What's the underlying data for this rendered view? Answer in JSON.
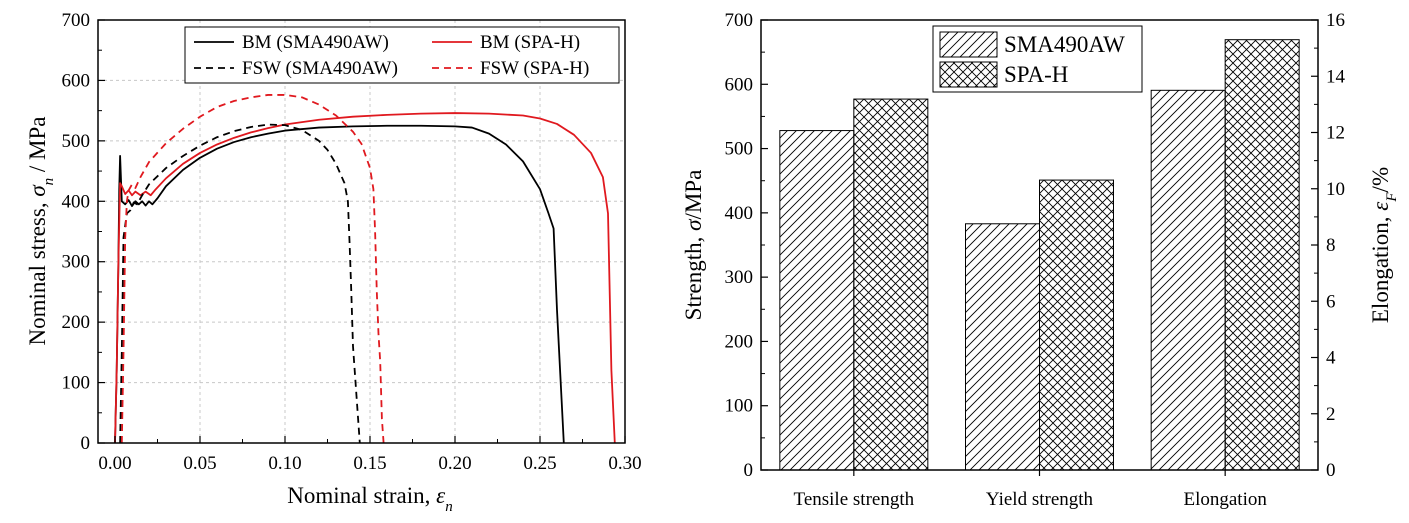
{
  "chart_data": [
    {
      "type": "line",
      "xlabel": "Nominal strain, ",
      "xlabel_symbol": "ε",
      "xlabel_sub": "n",
      "ylabel": "Nominal stress, ",
      "ylabel_symbol": "σ",
      "ylabel_sub": "n",
      "ylabel_unit": " / MPa",
      "xlim": [
        -0.01,
        0.3
      ],
      "ylim": [
        0,
        700
      ],
      "xticks": [
        "0.00",
        "0.05",
        "0.10",
        "0.15",
        "0.20",
        "0.25",
        "0.30"
      ],
      "xtick_values": [
        0,
        0.05,
        0.1,
        0.15,
        0.2,
        0.25,
        0.3
      ],
      "yticks": [
        "0",
        "100",
        "200",
        "300",
        "400",
        "500",
        "600",
        "700"
      ],
      "ytick_values": [
        0,
        100,
        200,
        300,
        400,
        500,
        600,
        700
      ],
      "grid": true,
      "legend_position": "top-right",
      "series": [
        {
          "name": "BM (SMA490AW)",
          "color": "#000000",
          "dash": "solid",
          "points": [
            [
              0,
              0
            ],
            [
              0.001,
              120
            ],
            [
              0.002,
              300
            ],
            [
              0.0025,
              420
            ],
            [
              0.003,
              475
            ],
            [
              0.004,
              400
            ],
            [
              0.006,
              395
            ],
            [
              0.008,
              402
            ],
            [
              0.01,
              392
            ],
            [
              0.012,
              400
            ],
            [
              0.014,
              395
            ],
            [
              0.016,
              400
            ],
            [
              0.018,
              393
            ],
            [
              0.02,
              400
            ],
            [
              0.022,
              395
            ],
            [
              0.025,
              405
            ],
            [
              0.03,
              425
            ],
            [
              0.04,
              452
            ],
            [
              0.05,
              472
            ],
            [
              0.06,
              487
            ],
            [
              0.07,
              498
            ],
            [
              0.08,
              506
            ],
            [
              0.09,
              512
            ],
            [
              0.1,
              517
            ],
            [
              0.12,
              522
            ],
            [
              0.14,
              524
            ],
            [
              0.16,
              525
            ],
            [
              0.18,
              525
            ],
            [
              0.2,
              524
            ],
            [
              0.21,
              522
            ],
            [
              0.22,
              512
            ],
            [
              0.23,
              494
            ],
            [
              0.24,
              466
            ],
            [
              0.25,
              420
            ],
            [
              0.255,
              380
            ],
            [
              0.258,
              355
            ],
            [
              0.26,
              220
            ],
            [
              0.262,
              110
            ],
            [
              0.264,
              0
            ]
          ]
        },
        {
          "name": "BM (SPA-H)",
          "color": "#e0191f",
          "dash": "solid",
          "points": [
            [
              0,
              0
            ],
            [
              0.001,
              120
            ],
            [
              0.002,
              300
            ],
            [
              0.003,
              430
            ],
            [
              0.004,
              425
            ],
            [
              0.006,
              412
            ],
            [
              0.008,
              418
            ],
            [
              0.01,
              410
            ],
            [
              0.012,
              416
            ],
            [
              0.015,
              410
            ],
            [
              0.018,
              416
            ],
            [
              0.021,
              410
            ],
            [
              0.024,
              420
            ],
            [
              0.03,
              438
            ],
            [
              0.04,
              462
            ],
            [
              0.05,
              480
            ],
            [
              0.06,
              494
            ],
            [
              0.07,
              505
            ],
            [
              0.08,
              514
            ],
            [
              0.09,
              521
            ],
            [
              0.1,
              527
            ],
            [
              0.12,
              535
            ],
            [
              0.14,
              540
            ],
            [
              0.16,
              543
            ],
            [
              0.18,
              545
            ],
            [
              0.2,
              546
            ],
            [
              0.22,
              545
            ],
            [
              0.24,
              542
            ],
            [
              0.25,
              537
            ],
            [
              0.26,
              528
            ],
            [
              0.27,
              510
            ],
            [
              0.28,
              480
            ],
            [
              0.287,
              440
            ],
            [
              0.29,
              380
            ],
            [
              0.291,
              250
            ],
            [
              0.292,
              120
            ],
            [
              0.294,
              0
            ]
          ]
        },
        {
          "name": "FSW (SMA490AW)",
          "color": "#000000",
          "dash": "dashed",
          "points": [
            [
              0.003,
              0
            ],
            [
              0.004,
              150
            ],
            [
              0.005,
              340
            ],
            [
              0.006,
              360
            ],
            [
              0.007,
              380
            ],
            [
              0.009,
              385
            ],
            [
              0.011,
              398
            ],
            [
              0.013,
              395
            ],
            [
              0.016,
              410
            ],
            [
              0.02,
              428
            ],
            [
              0.03,
              455
            ],
            [
              0.04,
              475
            ],
            [
              0.05,
              492
            ],
            [
              0.06,
              506
            ],
            [
              0.07,
              516
            ],
            [
              0.08,
              523
            ],
            [
              0.09,
              527
            ],
            [
              0.1,
              526
            ],
            [
              0.11,
              518
            ],
            [
              0.12,
              500
            ],
            [
              0.125,
              485
            ],
            [
              0.13,
              462
            ],
            [
              0.135,
              430
            ],
            [
              0.137,
              400
            ],
            [
              0.138,
              330
            ],
            [
              0.139,
              250
            ],
            [
              0.14,
              160
            ],
            [
              0.142,
              80
            ],
            [
              0.144,
              0
            ]
          ]
        },
        {
          "name": "FSW (SPA-H)",
          "color": "#e0191f",
          "dash": "dashed",
          "points": [
            [
              0.004,
              0
            ],
            [
              0.005,
              150
            ],
            [
              0.006,
              340
            ],
            [
              0.007,
              400
            ],
            [
              0.008,
              418
            ],
            [
              0.01,
              428
            ],
            [
              0.012,
              422
            ],
            [
              0.015,
              440
            ],
            [
              0.02,
              465
            ],
            [
              0.03,
              496
            ],
            [
              0.04,
              520
            ],
            [
              0.05,
              540
            ],
            [
              0.06,
              556
            ],
            [
              0.07,
              566
            ],
            [
              0.08,
              572
            ],
            [
              0.09,
              576
            ],
            [
              0.1,
              576
            ],
            [
              0.11,
              572
            ],
            [
              0.12,
              560
            ],
            [
              0.13,
              542
            ],
            [
              0.14,
              515
            ],
            [
              0.145,
              495
            ],
            [
              0.15,
              455
            ],
            [
              0.152,
              420
            ],
            [
              0.153,
              350
            ],
            [
              0.154,
              250
            ],
            [
              0.155,
              180
            ],
            [
              0.156,
              135
            ],
            [
              0.157,
              40
            ],
            [
              0.158,
              0
            ]
          ]
        }
      ]
    },
    {
      "type": "bar",
      "categories": [
        "Tensile strength",
        "Yield strength",
        "Elongation"
      ],
      "ylabel": "Strength, ",
      "ylabel_symbol": "σ",
      "ylabel_unit": "/MPa",
      "y2label": "Elongation, ",
      "y2label_symbol": "ε",
      "y2label_sub": "F",
      "y2label_unit": "/%",
      "ylim": [
        0,
        700
      ],
      "y2lim": [
        0,
        16
      ],
      "yticks": [
        "0",
        "100",
        "200",
        "300",
        "400",
        "500",
        "600",
        "700"
      ],
      "ytick_values": [
        0,
        100,
        200,
        300,
        400,
        500,
        600,
        700
      ],
      "y2ticks": [
        "0",
        "2",
        "4",
        "6",
        "8",
        "10",
        "12",
        "14",
        "16"
      ],
      "y2tick_values": [
        0,
        2,
        4,
        6,
        8,
        10,
        12,
        14,
        16
      ],
      "grid": false,
      "legend_position": "top-center",
      "series": [
        {
          "name": "SMA490AW",
          "pattern": "diagonal-hatch",
          "values": [
            528,
            383,
            13.5
          ],
          "axes": [
            "left",
            "left",
            "right"
          ]
        },
        {
          "name": "SPA-H",
          "pattern": "cross-hatch",
          "values": [
            577,
            451,
            15.3
          ],
          "axes": [
            "left",
            "left",
            "right"
          ]
        }
      ]
    }
  ]
}
